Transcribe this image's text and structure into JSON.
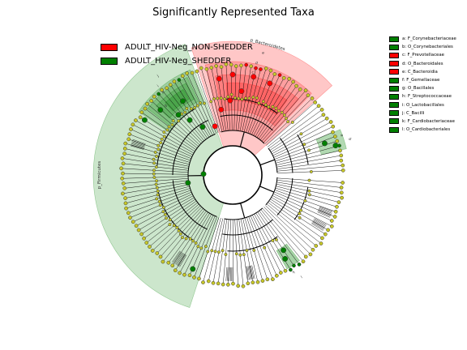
{
  "figure": {
    "title": "Significantly Represented Taxa",
    "colors": {
      "non_shedder": "#ff0000",
      "shedder": "#008000",
      "neutral_node": "#c8c828",
      "edge": "#000000"
    }
  },
  "legend": [
    {
      "label": "ADULT_HIV-Neg_NON-SHEDDER",
      "color": "#ff0000"
    },
    {
      "label": "ADULT_HIV-Neg_SHEDDER",
      "color": "#008000"
    }
  ],
  "side_legend": [
    {
      "label": "a: F_Corynebacteriaceae",
      "color": "#008000"
    },
    {
      "label": "b: O_Corynebacteriales",
      "color": "#008000"
    },
    {
      "label": "c: F_Prevotellaceae",
      "color": "#ff0000"
    },
    {
      "label": "d: O_Bacteroidales",
      "color": "#ff0000"
    },
    {
      "label": "e: C_Bacteroidia",
      "color": "#ff0000"
    },
    {
      "label": "f: F_Gemellaceae",
      "color": "#008000"
    },
    {
      "label": "g: O_Bacillales",
      "color": "#008000"
    },
    {
      "label": "h: F_Streptococcaceae",
      "color": "#008000"
    },
    {
      "label": "i: O_Lactobacillales",
      "color": "#008000"
    },
    {
      "label": "j: C_Bacilli",
      "color": "#008000"
    },
    {
      "label": "k: F_Cardiobacteriaceae",
      "color": "#008000"
    },
    {
      "label": "l: O_Cardiobacteriales",
      "color": "#008000"
    }
  ],
  "clade_labels": {
    "bacteroidetes": "p_Bacteroidetes",
    "firmicutes": "p_Firmicutes",
    "letters": [
      "a",
      "b",
      "c",
      "d",
      "e",
      "f",
      "g",
      "h",
      "i",
      "j",
      "k",
      "l"
    ]
  }
}
